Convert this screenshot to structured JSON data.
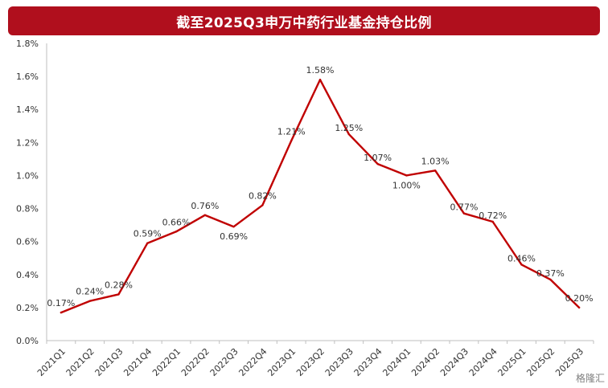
{
  "chart_data": {
    "type": "line",
    "title": "截至2025Q3申万中药行业基金持仓比例",
    "categories": [
      "2021Q1",
      "2021Q2",
      "2021Q3",
      "2021Q4",
      "2022Q1",
      "2022Q2",
      "2022Q3",
      "2022Q4",
      "2023Q1",
      "2023Q2",
      "2023Q3",
      "2023Q4",
      "2024Q1",
      "2024Q2",
      "2024Q3",
      "2024Q4",
      "2025Q1",
      "2025Q2",
      "2025Q3"
    ],
    "series": [
      {
        "values": [
          0.17,
          0.24,
          0.28,
          0.59,
          0.66,
          0.76,
          0.69,
          0.82,
          1.21,
          1.58,
          1.25,
          1.07,
          1.0,
          1.03,
          0.77,
          0.72,
          0.46,
          0.37,
          0.2
        ],
        "labels": [
          "0.17%",
          "0.24%",
          "0.28%",
          "0.59%",
          "0.66%",
          "0.76%",
          "0.69%",
          "0.82%",
          "1.21%",
          "1.58%",
          "1.25%",
          "1.07%",
          "1.00%",
          "1.03%",
          "0.77%",
          "0.72%",
          "0.46%",
          "0.37%",
          "0.20%"
        ]
      }
    ],
    "ylim": [
      0,
      1.8
    ],
    "yticks": [
      "0.0%",
      "0.2%",
      "0.4%",
      "0.6%",
      "0.8%",
      "1.0%",
      "1.2%",
      "1.4%",
      "1.6%",
      "1.8%"
    ],
    "grid": false,
    "line_color": "#c00000",
    "title_bg": "#b00f1d"
  },
  "watermark": "格隆汇"
}
